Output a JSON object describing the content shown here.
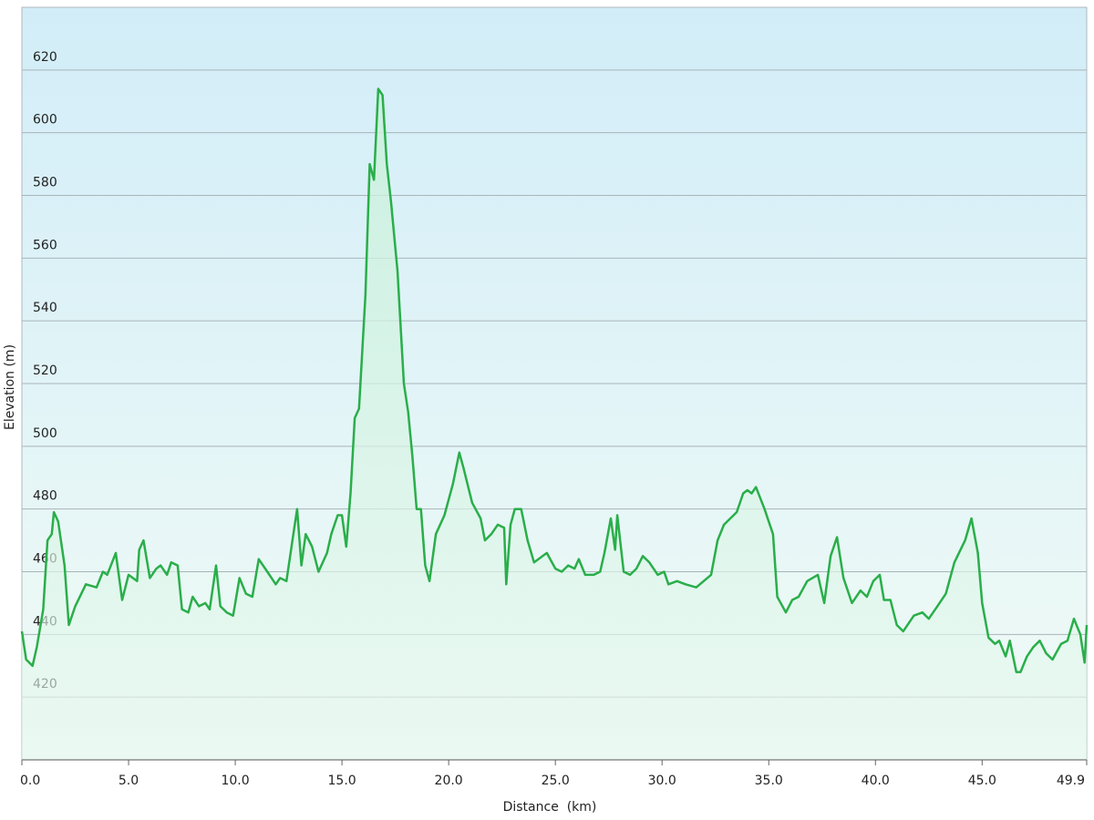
{
  "chart_data": {
    "type": "area",
    "xlabel": "Distance  (km)",
    "ylabel": "Elevation (m)",
    "color": "#2aae4a",
    "xlim": [
      0,
      49.9
    ],
    "ylim": [
      400,
      640
    ],
    "xticks": [
      {
        "value": 0,
        "label": "0.0"
      },
      {
        "value": 5,
        "label": "5.0"
      },
      {
        "value": 10,
        "label": "10.0"
      },
      {
        "value": 15,
        "label": "15.0"
      },
      {
        "value": 20,
        "label": "20.0"
      },
      {
        "value": 25,
        "label": "25.0"
      },
      {
        "value": 30,
        "label": "30.0"
      },
      {
        "value": 35,
        "label": "35.0"
      },
      {
        "value": 40,
        "label": "40.0"
      },
      {
        "value": 45,
        "label": "45.0"
      },
      49.9
    ],
    "yticks": [
      420,
      440,
      460,
      480,
      500,
      520,
      540,
      560,
      580,
      600,
      620
    ],
    "grid": true,
    "x": [
      0,
      0.2,
      0.5,
      0.7,
      1.0,
      1.2,
      1.4,
      1.5,
      1.7,
      2.0,
      2.2,
      2.5,
      3.0,
      3.5,
      3.8,
      4.0,
      4.4,
      4.7,
      5.0,
      5.4,
      5.5,
      5.7,
      6.0,
      6.3,
      6.5,
      6.8,
      7.0,
      7.3,
      7.5,
      7.8,
      8.0,
      8.3,
      8.6,
      8.8,
      9.1,
      9.3,
      9.6,
      9.9,
      10.2,
      10.5,
      10.8,
      11.1,
      11.5,
      11.9,
      12.1,
      12.4,
      12.7,
      12.9,
      13.1,
      13.3,
      13.6,
      13.9,
      14.3,
      14.5,
      14.8,
      15.0,
      15.2,
      15.4,
      15.6,
      15.8,
      16.1,
      16.3,
      16.5,
      16.7,
      16.9,
      17.1,
      17.3,
      17.6,
      17.9,
      18.1,
      18.3,
      18.5,
      18.7,
      18.9,
      19.1,
      19.4,
      19.8,
      20.2,
      20.5,
      20.7,
      21.1,
      21.5,
      21.7,
      22.0,
      22.3,
      22.6,
      22.7,
      22.9,
      23.1,
      23.4,
      23.7,
      24.0,
      24.6,
      25.0,
      25.3,
      25.6,
      25.9,
      26.1,
      26.4,
      26.8,
      27.1,
      27.3,
      27.6,
      27.8,
      27.9,
      28.2,
      28.5,
      28.8,
      29.1,
      29.4,
      29.8,
      30.1,
      30.3,
      30.7,
      31.1,
      31.6,
      32.3,
      32.6,
      32.9,
      33.2,
      33.5,
      33.8,
      34.0,
      34.2,
      34.4,
      34.8,
      35.2,
      35.4,
      35.8,
      36.1,
      36.4,
      36.8,
      37.3,
      37.6,
      37.9,
      38.2,
      38.5,
      38.9,
      39.3,
      39.6,
      39.9,
      40.2,
      40.4,
      40.7,
      41.0,
      41.3,
      41.8,
      42.2,
      42.5,
      42.9,
      43.3,
      43.7,
      44.2,
      44.5,
      44.8,
      45.0,
      45.3,
      45.6,
      45.8,
      46.1,
      46.3,
      46.6,
      46.8,
      47.1,
      47.4,
      47.7,
      48.0,
      48.3,
      48.7,
      49.0,
      49.3,
      49.6,
      49.8,
      49.9
    ],
    "values": [
      441,
      432,
      430,
      436,
      448,
      470,
      472,
      479,
      476,
      462,
      443,
      449,
      456,
      455,
      460,
      459,
      466,
      451,
      459,
      457,
      467,
      470,
      458,
      461,
      462,
      459,
      463,
      462,
      448,
      447,
      452,
      449,
      450,
      448,
      462,
      449,
      447,
      446,
      458,
      453,
      452,
      464,
      460,
      456,
      458,
      457,
      471,
      480,
      462,
      472,
      468,
      460,
      466,
      472,
      478,
      478,
      468,
      485,
      509,
      512,
      548,
      590,
      585,
      614,
      612,
      590,
      578,
      556,
      520,
      511,
      497,
      480,
      480,
      462,
      457,
      472,
      478,
      488,
      498,
      493,
      482,
      477,
      470,
      472,
      475,
      474,
      456,
      475,
      480,
      480,
      470,
      463,
      466,
      461,
      460,
      462,
      461,
      464,
      459,
      459,
      460,
      466,
      477,
      467,
      478,
      460,
      459,
      461,
      465,
      463,
      459,
      460,
      456,
      457,
      456,
      455,
      459,
      470,
      475,
      477,
      479,
      485,
      486,
      485,
      487,
      480,
      472,
      452,
      447,
      451,
      452,
      457,
      459,
      450,
      465,
      471,
      458,
      450,
      454,
      452,
      457,
      459,
      451,
      451,
      443,
      441,
      446,
      447,
      445,
      449,
      453,
      463,
      470,
      477,
      466,
      450,
      439,
      437,
      438,
      433,
      438,
      428,
      428,
      433,
      436,
      438,
      434,
      432,
      437,
      438,
      445,
      440,
      431,
      443
    ]
  }
}
